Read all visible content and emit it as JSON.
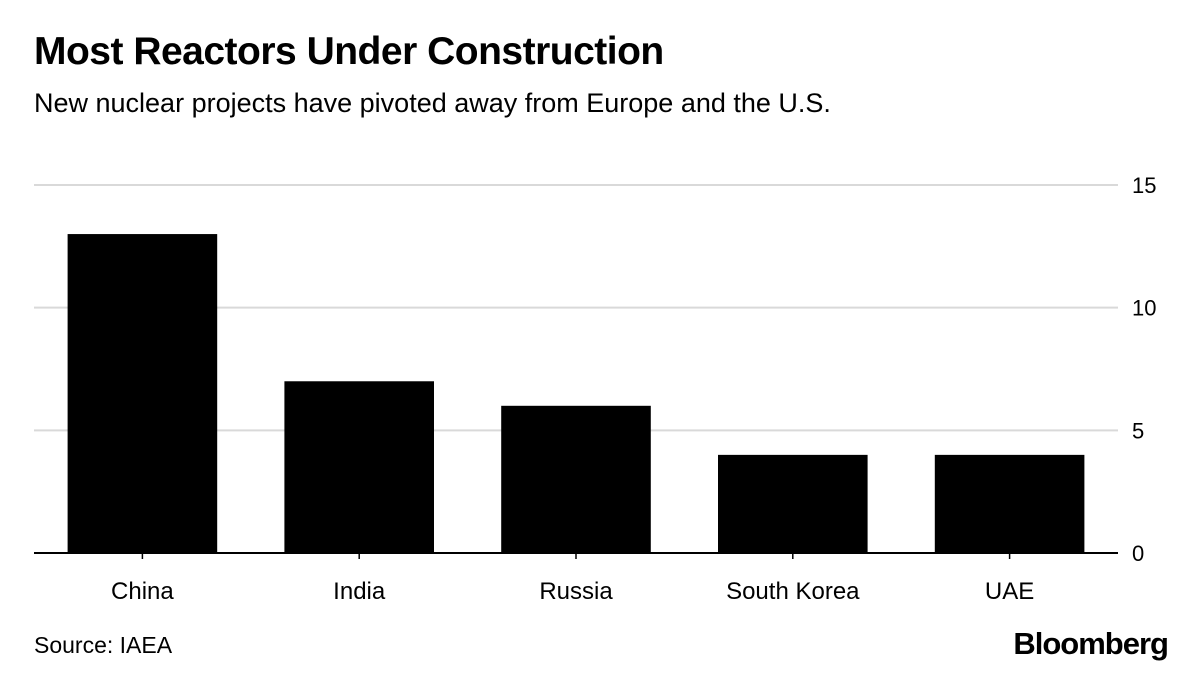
{
  "title": "Most Reactors Under Construction",
  "subtitle": "New nuclear projects have pivoted away from Europe and the U.S.",
  "source": "Source: IAEA",
  "brand": "Bloomberg",
  "colors": {
    "bar": "#000000",
    "grid": "#d9d9d9",
    "axis": "#000000"
  },
  "chart_data": {
    "type": "bar",
    "categories": [
      "China",
      "India",
      "Russia",
      "South Korea",
      "UAE"
    ],
    "values": [
      13,
      7,
      6,
      4,
      4
    ],
    "title": "Most Reactors Under Construction",
    "subtitle": "New nuclear projects have pivoted away from Europe and the U.S.",
    "xlabel": "",
    "ylabel": "",
    "ylim": [
      0,
      15
    ],
    "yticks": [
      0,
      5,
      10,
      15
    ],
    "ytick_labels": [
      "0",
      "5",
      "10",
      "15"
    ],
    "y_axis_side": "right",
    "grid": true
  }
}
